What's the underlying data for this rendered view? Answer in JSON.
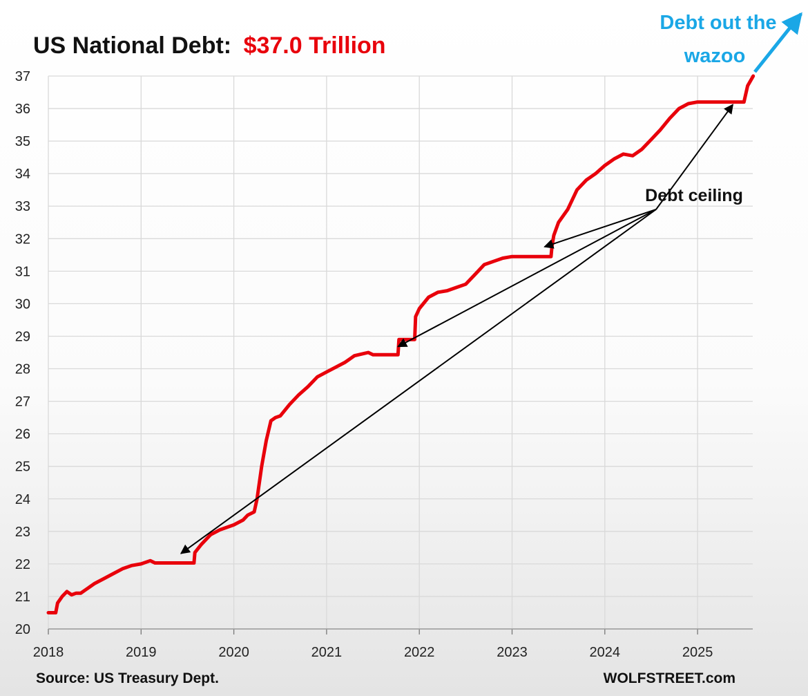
{
  "colors": {
    "title_main": "#111111",
    "title_accent": "#e8000b",
    "series_line": "#e8000b",
    "annotation_arrow": "#000000",
    "wazoo": "#1aa7e6",
    "grid": "#d9d9d9"
  },
  "chart_data": {
    "type": "line",
    "title": "US National Debt:",
    "title_highlight": "$37.0 Trillion",
    "xlabel": "",
    "ylabel": "",
    "xlim": [
      2018.0,
      2025.6
    ],
    "ylim": [
      20,
      37
    ],
    "x_ticks": [
      "2018",
      "2019",
      "2020",
      "2021",
      "2022",
      "2023",
      "2024",
      "2025"
    ],
    "y_ticks": [
      "20",
      "21",
      "22",
      "23",
      "24",
      "25",
      "26",
      "27",
      "28",
      "29",
      "30",
      "31",
      "32",
      "33",
      "34",
      "35",
      "36",
      "37"
    ],
    "grid": "vertical and horizontal",
    "legend": "none",
    "series": [
      {
        "x": [
          2018.0,
          2018.08,
          2018.1,
          2018.15,
          2018.2,
          2018.25,
          2018.3,
          2018.35,
          2018.4,
          2018.5,
          2018.6,
          2018.7,
          2018.8,
          2018.9,
          2019.0,
          2019.1,
          2019.15,
          2019.2,
          2019.3,
          2019.45,
          2019.57,
          2019.58,
          2019.65,
          2019.75,
          2019.85,
          2020.0,
          2020.1,
          2020.15,
          2020.22,
          2020.25,
          2020.3,
          2020.35,
          2020.4,
          2020.45,
          2020.5,
          2020.6,
          2020.7,
          2020.8,
          2020.9,
          2021.0,
          2021.1,
          2021.2,
          2021.3,
          2021.45,
          2021.5,
          2021.6,
          2021.77,
          2021.78,
          2021.95,
          2021.96,
          2022.0,
          2022.1,
          2022.2,
          2022.3,
          2022.4,
          2022.5,
          2022.6,
          2022.7,
          2022.8,
          2022.9,
          2023.0,
          2023.1,
          2023.2,
          2023.3,
          2023.42,
          2023.43,
          2023.45,
          2023.5,
          2023.6,
          2023.7,
          2023.8,
          2023.9,
          2024.0,
          2024.1,
          2024.2,
          2024.3,
          2024.4,
          2024.5,
          2024.6,
          2024.7,
          2024.8,
          2024.9,
          2025.0,
          2025.1,
          2025.2,
          2025.3,
          2025.4,
          2025.5,
          2025.52,
          2025.54,
          2025.58,
          2025.6
        ],
        "values": [
          20.5,
          20.5,
          20.8,
          21.0,
          21.15,
          21.05,
          21.1,
          21.1,
          21.2,
          21.4,
          21.55,
          21.7,
          21.85,
          21.95,
          22.0,
          22.1,
          22.03,
          22.03,
          22.03,
          22.03,
          22.03,
          22.35,
          22.6,
          22.9,
          23.05,
          23.2,
          23.35,
          23.5,
          23.6,
          24.0,
          25.0,
          25.8,
          26.4,
          26.5,
          26.55,
          26.9,
          27.2,
          27.45,
          27.75,
          27.9,
          28.05,
          28.2,
          28.4,
          28.5,
          28.43,
          28.43,
          28.43,
          28.9,
          28.9,
          29.6,
          29.85,
          30.2,
          30.35,
          30.4,
          30.5,
          30.6,
          30.9,
          31.2,
          31.3,
          31.4,
          31.45,
          31.45,
          31.45,
          31.45,
          31.45,
          31.75,
          32.1,
          32.5,
          32.9,
          33.5,
          33.8,
          34.0,
          34.25,
          34.45,
          34.6,
          34.55,
          34.75,
          35.05,
          35.35,
          35.7,
          36.0,
          36.15,
          36.2,
          36.2,
          36.2,
          36.2,
          36.2,
          36.2,
          36.45,
          36.7,
          36.9,
          37.0
        ]
      }
    ],
    "annotations": [
      {
        "text": "Debt ceiling",
        "arrows_to": [
          {
            "x": 2019.43,
            "y": 22.32
          },
          {
            "x": 2021.77,
            "y": 28.68
          },
          {
            "x": 2023.35,
            "y": 31.75
          },
          {
            "x": 2025.38,
            "y": 36.12
          }
        ]
      }
    ],
    "callout": {
      "line1": "Debt out the",
      "line2": "wazoo"
    },
    "footer": {
      "source": "Source: US Treasury Dept.",
      "brand": "WOLFSTREET.com"
    }
  }
}
